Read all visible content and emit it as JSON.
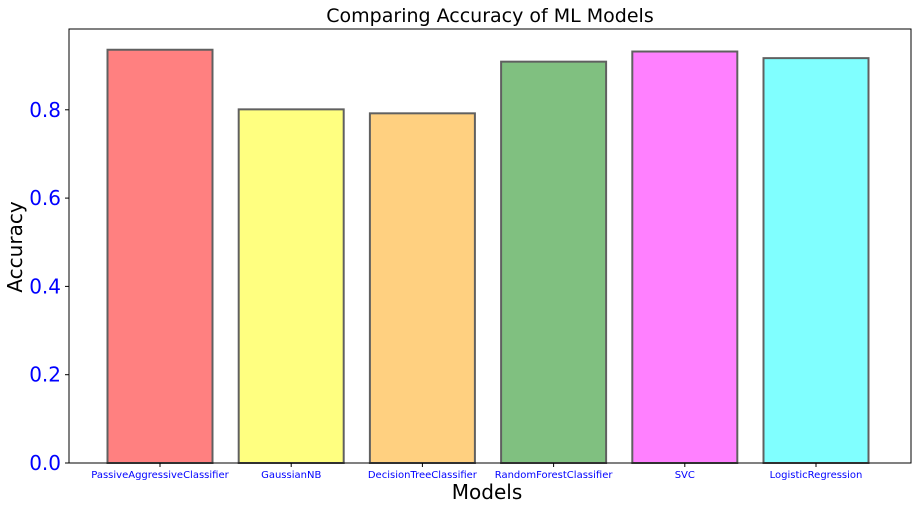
{
  "chart_data": {
    "type": "bar",
    "title": "Comparing Accuracy of ML Models",
    "xlabel": "Models",
    "ylabel": "Accuracy",
    "categories": [
      "PassiveAggressiveClassifier",
      "GaussianNB",
      "DecisionTreeClassifier",
      "RandomForestClassifier",
      "SVC",
      "LogisticRegression"
    ],
    "values": [
      0.936,
      0.801,
      0.792,
      0.909,
      0.932,
      0.917
    ],
    "bar_colors": [
      "#ff8080",
      "#ffff80",
      "#ffd080",
      "#80c080",
      "#ff80ff",
      "#80ffff"
    ],
    "edge_color": "#606060",
    "yticks": [
      "0.0",
      "0.2",
      "0.4",
      "0.6",
      "0.8"
    ],
    "tick_label_color": "#0000ff",
    "ylim": [
      0,
      0.983
    ],
    "grid": false,
    "legend": false
  }
}
